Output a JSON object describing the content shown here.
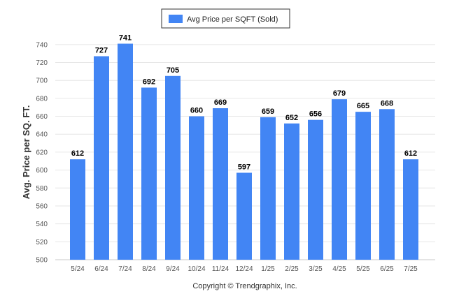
{
  "chart_data": {
    "type": "bar",
    "categories": [
      "5/24",
      "6/24",
      "7/24",
      "8/24",
      "9/24",
      "10/24",
      "11/24",
      "12/24",
      "1/25",
      "2/25",
      "3/25",
      "4/25",
      "5/25",
      "6/25",
      "7/25"
    ],
    "series": [
      {
        "name": "Avg Price per SQFT (Sold)",
        "values": [
          612,
          727,
          741,
          692,
          705,
          660,
          669,
          597,
          659,
          652,
          656,
          679,
          665,
          668,
          612
        ]
      }
    ],
    "ylabel": "Avg. Price per SQ. FT.",
    "xlabel": "",
    "ylim": [
      500,
      750
    ],
    "yticks": [
      500,
      520,
      540,
      560,
      580,
      600,
      620,
      640,
      660,
      680,
      700,
      720,
      740
    ],
    "grid": true,
    "legend_position": "top-center",
    "bar_color": "#4285f4",
    "footer": "Copyright © Trendgraphix, Inc."
  }
}
